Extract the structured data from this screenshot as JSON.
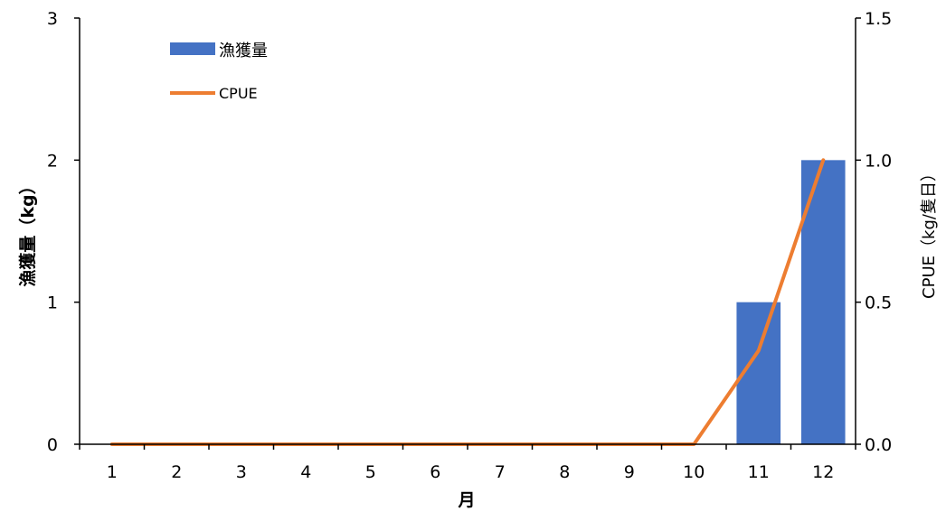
{
  "chart_data": {
    "type": "bar",
    "categories": [
      "1",
      "2",
      "3",
      "4",
      "5",
      "6",
      "7",
      "8",
      "9",
      "10",
      "11",
      "12"
    ],
    "series": [
      {
        "name": "漁獲量",
        "type": "bar",
        "axis": "left",
        "color": "#4472C4",
        "values": [
          0,
          0,
          0,
          0,
          0,
          0,
          0,
          0,
          0,
          0,
          1,
          2
        ]
      },
      {
        "name": "CPUE",
        "type": "line",
        "axis": "right",
        "color": "#ED7D31",
        "values": [
          0,
          0,
          0,
          0,
          0,
          0,
          0,
          0,
          0,
          0,
          0.33,
          1.0
        ]
      }
    ],
    "xlabel": "月",
    "ylabel_left": "漁獲量（kg）",
    "ylabel_right": "CPUE（kg/隻日）",
    "ylim_left": [
      0,
      3
    ],
    "ylim_right": [
      0,
      1.5
    ],
    "yticks_left": [
      "0",
      "1",
      "2",
      "3"
    ],
    "yticks_right": [
      "0.0",
      "0.5",
      "1.0",
      "1.5"
    ],
    "grid": false,
    "legend_position": "top-left"
  }
}
